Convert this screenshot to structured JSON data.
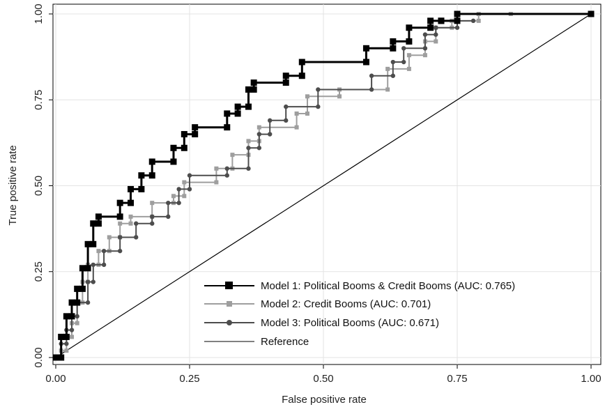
{
  "chart_data": {
    "type": "line",
    "title": "",
    "xlabel": "False positive rate",
    "ylabel": "True positive rate",
    "xlim": [
      0,
      1
    ],
    "ylim": [
      0,
      1
    ],
    "grid": true,
    "legend_position": "bottom-right",
    "x_ticks": [
      "0.00",
      "0.25",
      "0.50",
      "0.75",
      "1.00"
    ],
    "y_ticks": [
      "0.00",
      "0.25",
      "0.50",
      "0.75",
      "1.00"
    ],
    "series": [
      {
        "name": "Model 1: Political Booms & Credit Booms (AUC: 0.765)",
        "color": "#000000",
        "marker": "square",
        "x": [
          0.0,
          0.01,
          0.01,
          0.02,
          0.02,
          0.03,
          0.03,
          0.04,
          0.04,
          0.05,
          0.05,
          0.06,
          0.06,
          0.07,
          0.07,
          0.08,
          0.08,
          0.12,
          0.12,
          0.14,
          0.14,
          0.16,
          0.16,
          0.18,
          0.18,
          0.22,
          0.22,
          0.24,
          0.24,
          0.26,
          0.26,
          0.32,
          0.32,
          0.34,
          0.34,
          0.36,
          0.36,
          0.37,
          0.37,
          0.43,
          0.43,
          0.46,
          0.46,
          0.58,
          0.58,
          0.63,
          0.63,
          0.66,
          0.66,
          0.7,
          0.7,
          0.72,
          0.72,
          0.75,
          0.75,
          1.0
        ],
        "y": [
          0.0,
          0.0,
          0.06,
          0.06,
          0.12,
          0.12,
          0.16,
          0.16,
          0.2,
          0.2,
          0.26,
          0.26,
          0.33,
          0.33,
          0.39,
          0.39,
          0.41,
          0.41,
          0.45,
          0.45,
          0.49,
          0.49,
          0.53,
          0.53,
          0.57,
          0.57,
          0.61,
          0.61,
          0.65,
          0.65,
          0.67,
          0.67,
          0.71,
          0.71,
          0.73,
          0.73,
          0.78,
          0.78,
          0.8,
          0.8,
          0.82,
          0.82,
          0.86,
          0.86,
          0.9,
          0.9,
          0.92,
          0.92,
          0.96,
          0.96,
          0.98,
          0.98,
          0.98,
          0.98,
          1.0,
          1.0
        ]
      },
      {
        "name": "Model 2: Credit Booms (AUC: 0.701)",
        "color": "#9e9e9e",
        "marker": "square",
        "x": [
          0.0,
          0.01,
          0.01,
          0.02,
          0.02,
          0.03,
          0.03,
          0.04,
          0.04,
          0.05,
          0.05,
          0.06,
          0.06,
          0.08,
          0.08,
          0.1,
          0.1,
          0.12,
          0.12,
          0.14,
          0.14,
          0.18,
          0.18,
          0.22,
          0.22,
          0.24,
          0.24,
          0.3,
          0.3,
          0.33,
          0.33,
          0.36,
          0.36,
          0.38,
          0.38,
          0.45,
          0.45,
          0.47,
          0.47,
          0.53,
          0.53,
          0.62,
          0.62,
          0.66,
          0.66,
          0.69,
          0.69,
          0.71,
          0.71,
          0.74,
          0.74,
          0.79,
          0.79,
          0.85
        ],
        "y": [
          0.0,
          0.0,
          0.02,
          0.02,
          0.06,
          0.06,
          0.1,
          0.1,
          0.16,
          0.16,
          0.22,
          0.22,
          0.27,
          0.27,
          0.31,
          0.31,
          0.35,
          0.35,
          0.39,
          0.39,
          0.41,
          0.41,
          0.45,
          0.45,
          0.47,
          0.47,
          0.51,
          0.51,
          0.55,
          0.55,
          0.59,
          0.59,
          0.63,
          0.63,
          0.67,
          0.67,
          0.71,
          0.71,
          0.76,
          0.76,
          0.78,
          0.78,
          0.84,
          0.84,
          0.88,
          0.88,
          0.92,
          0.92,
          0.96,
          0.96,
          0.98,
          0.98,
          1.0,
          1.0
        ]
      },
      {
        "name": "Model 3: Political Booms (AUC: 0.671)",
        "color": "#4d4d4d",
        "marker": "circle",
        "x": [
          0.0,
          0.01,
          0.01,
          0.02,
          0.02,
          0.03,
          0.03,
          0.04,
          0.04,
          0.06,
          0.06,
          0.07,
          0.07,
          0.09,
          0.09,
          0.12,
          0.12,
          0.15,
          0.15,
          0.18,
          0.18,
          0.21,
          0.21,
          0.23,
          0.23,
          0.25,
          0.25,
          0.32,
          0.32,
          0.36,
          0.36,
          0.38,
          0.38,
          0.4,
          0.4,
          0.43,
          0.43,
          0.49,
          0.49,
          0.59,
          0.59,
          0.63,
          0.63,
          0.65,
          0.65,
          0.69,
          0.69,
          0.71,
          0.71,
          0.75,
          0.75,
          0.78
        ],
        "y": [
          0.0,
          0.0,
          0.04,
          0.04,
          0.08,
          0.08,
          0.12,
          0.12,
          0.16,
          0.16,
          0.22,
          0.22,
          0.27,
          0.27,
          0.31,
          0.31,
          0.35,
          0.35,
          0.39,
          0.39,
          0.41,
          0.41,
          0.45,
          0.45,
          0.49,
          0.49,
          0.53,
          0.53,
          0.55,
          0.55,
          0.61,
          0.61,
          0.65,
          0.65,
          0.69,
          0.69,
          0.73,
          0.73,
          0.78,
          0.78,
          0.82,
          0.82,
          0.86,
          0.86,
          0.9,
          0.9,
          0.94,
          0.94,
          0.96,
          0.96,
          0.98,
          0.98
        ]
      },
      {
        "name": "Reference",
        "color": "#000000",
        "marker": "none",
        "x": [
          0.0,
          1.0
        ],
        "y": [
          0.0,
          1.0
        ]
      }
    ]
  }
}
